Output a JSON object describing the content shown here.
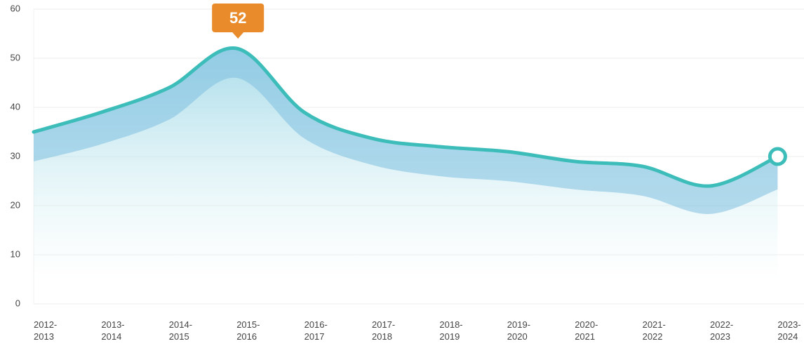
{
  "chart_data": {
    "type": "line",
    "categories": [
      "2012-2013",
      "2013-2014",
      "2014-2015",
      "2015-2016",
      "2016-2017",
      "2017-2018",
      "2018-2019",
      "2019-2020",
      "2020-2021",
      "2021-2022",
      "2022-2023",
      "2023-2024"
    ],
    "series": [
      {
        "color": "#3dbdb9",
        "values": [
          35,
          39,
          44,
          52,
          39,
          33.7,
          32,
          31,
          29,
          28,
          24,
          30
        ]
      },
      {
        "color": "#7fbfe0",
        "values": [
          29,
          32.5,
          37.5,
          46,
          33.7,
          28.3,
          26,
          25,
          23.3,
          22,
          18.3,
          23.3
        ]
      }
    ],
    "annotation_index": 3,
    "ylim": [
      0,
      60
    ],
    "yticks": [
      0,
      10,
      20,
      30,
      40,
      50,
      60
    ],
    "grid": true
  }
}
